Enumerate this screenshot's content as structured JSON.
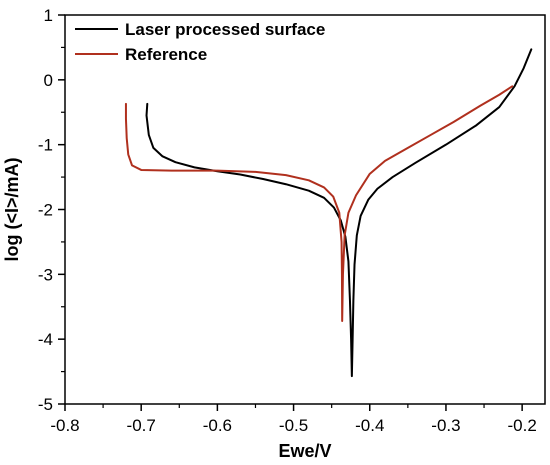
{
  "chart_data": {
    "type": "line",
    "title": "",
    "xlabel": "Ewe/V",
    "ylabel": "log (<I>/mA)",
    "xlim": [
      -0.8,
      -0.17
    ],
    "ylim": [
      -5,
      1
    ],
    "x_ticks": [
      -0.8,
      -0.7,
      -0.6,
      -0.5,
      -0.4,
      -0.3,
      -0.2
    ],
    "x_tick_labels": [
      "-0.8",
      "-0.7",
      "-0.6",
      "-0.5",
      "-0.4",
      "-0.3",
      "-0.2"
    ],
    "y_ticks": [
      -5,
      -4,
      -3,
      -2,
      -1,
      0,
      1
    ],
    "y_tick_labels": [
      "-5",
      "-4",
      "-3",
      "-2",
      "-1",
      "0",
      "1"
    ],
    "grid": false,
    "legend_position": "top-left",
    "series": [
      {
        "name": "Laser processed surface",
        "color": "#000000",
        "points": [
          [
            -0.692,
            -0.37
          ],
          [
            -0.693,
            -0.55
          ],
          [
            -0.69,
            -0.85
          ],
          [
            -0.684,
            -1.05
          ],
          [
            -0.672,
            -1.18
          ],
          [
            -0.655,
            -1.27
          ],
          [
            -0.63,
            -1.35
          ],
          [
            -0.6,
            -1.41
          ],
          [
            -0.57,
            -1.46
          ],
          [
            -0.54,
            -1.53
          ],
          [
            -0.51,
            -1.61
          ],
          [
            -0.48,
            -1.71
          ],
          [
            -0.46,
            -1.82
          ],
          [
            -0.447,
            -1.97
          ],
          [
            -0.438,
            -2.17
          ],
          [
            -0.432,
            -2.42
          ],
          [
            -0.428,
            -2.8
          ],
          [
            -0.426,
            -3.4
          ],
          [
            -0.4245,
            -4.0
          ],
          [
            -0.4235,
            -4.57
          ],
          [
            -0.4225,
            -4.0
          ],
          [
            -0.4215,
            -3.4
          ],
          [
            -0.42,
            -2.85
          ],
          [
            -0.417,
            -2.4
          ],
          [
            -0.412,
            -2.1
          ],
          [
            -0.402,
            -1.85
          ],
          [
            -0.39,
            -1.68
          ],
          [
            -0.37,
            -1.5
          ],
          [
            -0.34,
            -1.28
          ],
          [
            -0.3,
            -1.0
          ],
          [
            -0.26,
            -0.7
          ],
          [
            -0.23,
            -0.42
          ],
          [
            -0.21,
            -0.1
          ],
          [
            -0.198,
            0.18
          ],
          [
            -0.188,
            0.47
          ]
        ]
      },
      {
        "name": "Reference",
        "color": "#b0301e",
        "points": [
          [
            -0.72,
            -0.37
          ],
          [
            -0.72,
            -0.6
          ],
          [
            -0.719,
            -0.9
          ],
          [
            -0.717,
            -1.15
          ],
          [
            -0.712,
            -1.32
          ],
          [
            -0.7,
            -1.39
          ],
          [
            -0.66,
            -1.4
          ],
          [
            -0.6,
            -1.4
          ],
          [
            -0.55,
            -1.42
          ],
          [
            -0.51,
            -1.47
          ],
          [
            -0.48,
            -1.55
          ],
          [
            -0.46,
            -1.66
          ],
          [
            -0.448,
            -1.8
          ],
          [
            -0.44,
            -2.05
          ],
          [
            -0.437,
            -2.5
          ],
          [
            -0.4365,
            -3.0
          ],
          [
            -0.4362,
            -3.72
          ],
          [
            -0.4352,
            -3.0
          ],
          [
            -0.433,
            -2.4
          ],
          [
            -0.428,
            -2.05
          ],
          [
            -0.418,
            -1.78
          ],
          [
            -0.4,
            -1.45
          ],
          [
            -0.38,
            -1.25
          ],
          [
            -0.35,
            -1.05
          ],
          [
            -0.32,
            -0.85
          ],
          [
            -0.29,
            -0.65
          ],
          [
            -0.255,
            -0.4
          ],
          [
            -0.23,
            -0.23
          ],
          [
            -0.213,
            -0.1
          ]
        ]
      }
    ]
  }
}
